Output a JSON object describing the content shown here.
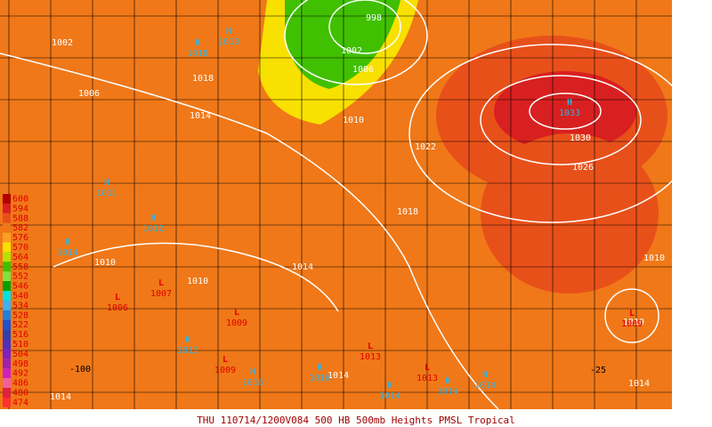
{
  "legend": [
    {
      "label": 600,
      "color": "#b00000"
    },
    {
      "label": 594,
      "color": "#d82020"
    },
    {
      "label": 588,
      "color": "#e8501a"
    },
    {
      "label": 582,
      "color": "#f07818"
    },
    {
      "label": 576,
      "color": "#f8a020"
    },
    {
      "label": 570,
      "color": "#f8e000"
    },
    {
      "label": 564,
      "color": "#b8e000"
    },
    {
      "label": 558,
      "color": "#40c000"
    },
    {
      "label": 552,
      "color": "#80e040"
    },
    {
      "label": 546,
      "color": "#00a000"
    },
    {
      "label": 540,
      "color": "#00e0e0"
    },
    {
      "label": 534,
      "color": "#40b0f0"
    },
    {
      "label": 528,
      "color": "#2080e0"
    },
    {
      "label": 522,
      "color": "#2050d0"
    },
    {
      "label": 516,
      "color": "#3040b0"
    },
    {
      "label": 510,
      "color": "#5030c0"
    },
    {
      "label": 504,
      "color": "#8020c0"
    },
    {
      "label": 498,
      "color": "#a020b0"
    },
    {
      "label": 492,
      "color": "#d020c0"
    },
    {
      "label": 486,
      "color": "#f060a0"
    },
    {
      "label": 480,
      "color": "#e02040"
    },
    {
      "label": 474,
      "color": "#ff3030"
    }
  ],
  "isobar_labels": [
    "1002",
    "1006",
    "1018",
    "1014",
    "1010",
    "1002",
    "1006",
    "998",
    "1022",
    "1018",
    "1030",
    "1026",
    "1014",
    "1010",
    "1010",
    "1010",
    "1014",
    "1014",
    "1014",
    "1010"
  ],
  "highs": [
    {
      "letter": "H",
      "pressure": "1013"
    },
    {
      "letter": "H",
      "pressure": "1018"
    },
    {
      "letter": "H",
      "pressure": "1011"
    },
    {
      "letter": "H",
      "pressure": "1012"
    },
    {
      "letter": "H",
      "pressure": "1014"
    },
    {
      "letter": "H",
      "pressure": "1033"
    },
    {
      "letter": "H",
      "pressure": "1012"
    },
    {
      "letter": "H",
      "pressure": "1016"
    },
    {
      "letter": "H",
      "pressure": "1016"
    },
    {
      "letter": "H",
      "pressure": "1014"
    },
    {
      "letter": "H",
      "pressure": "1014"
    },
    {
      "letter": "H",
      "pressure": "1014"
    }
  ],
  "lows": [
    {
      "letter": "L",
      "pressure": "1007"
    },
    {
      "letter": "L",
      "pressure": "1006"
    },
    {
      "letter": "L",
      "pressure": "1009"
    },
    {
      "letter": "L",
      "pressure": "1009"
    },
    {
      "letter": "L",
      "pressure": "1013"
    },
    {
      "letter": "L",
      "pressure": "1013"
    },
    {
      "letter": "L",
      "pressure": "1009"
    }
  ],
  "longitudes": [
    "-100",
    "-25"
  ],
  "footer": "THU 110714/1200V084  500 HB 500mb Heights PMSL Tropical"
}
